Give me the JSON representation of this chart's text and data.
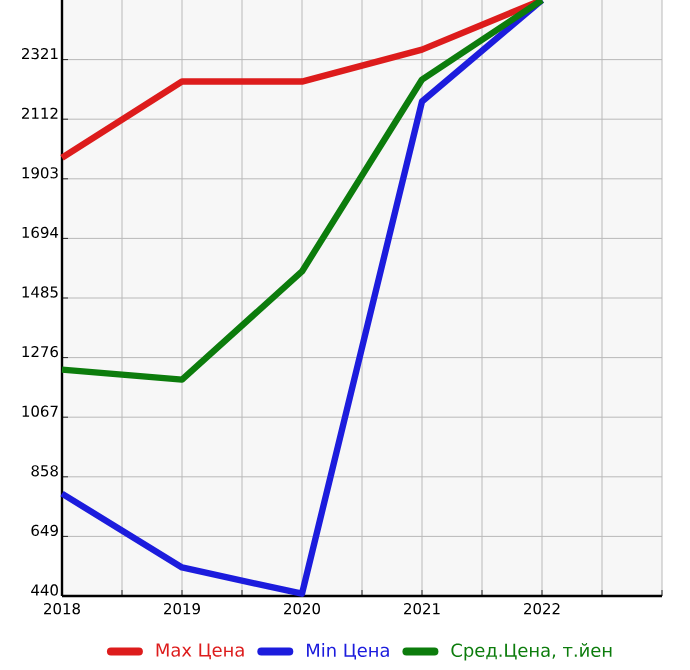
{
  "chart_data": {
    "type": "line",
    "x": [
      2018,
      2019,
      2020,
      2021,
      2022
    ],
    "series": [
      {
        "name": "Max Цена",
        "color": "#dd1c1c",
        "values": [
          1977,
          2244,
          2244,
          2356,
          2530
        ]
      },
      {
        "name": "Min Цена",
        "color": "#1c1cdd",
        "values": [
          799,
          540,
          448,
          2174,
          2530
        ]
      },
      {
        "name": "Сред.Цена, т.йен",
        "color": "#0c7c0c",
        "values": [
          1234,
          1199,
          1578,
          2251,
          2530
        ]
      }
    ],
    "xlim": [
      2018,
      2023
    ],
    "xticks": [
      2018,
      {
        "value": 2018.5,
        "label": null
      },
      2019,
      {
        "value": 2019.5,
        "label": null
      },
      2020,
      {
        "value": 2020.5,
        "label": null
      },
      2021,
      {
        "value": 2021.5,
        "label": null
      },
      2022,
      {
        "value": 2022.5,
        "label": null
      },
      {
        "value": 2023,
        "label": null
      }
    ],
    "ylim": [
      440,
      2530
    ],
    "yticks": [
      440,
      649,
      858,
      1067,
      1276,
      1485,
      1694,
      1903,
      2112,
      2321
    ],
    "grid": true,
    "legend": "bottom",
    "marker": "none",
    "line_style": "solid"
  }
}
